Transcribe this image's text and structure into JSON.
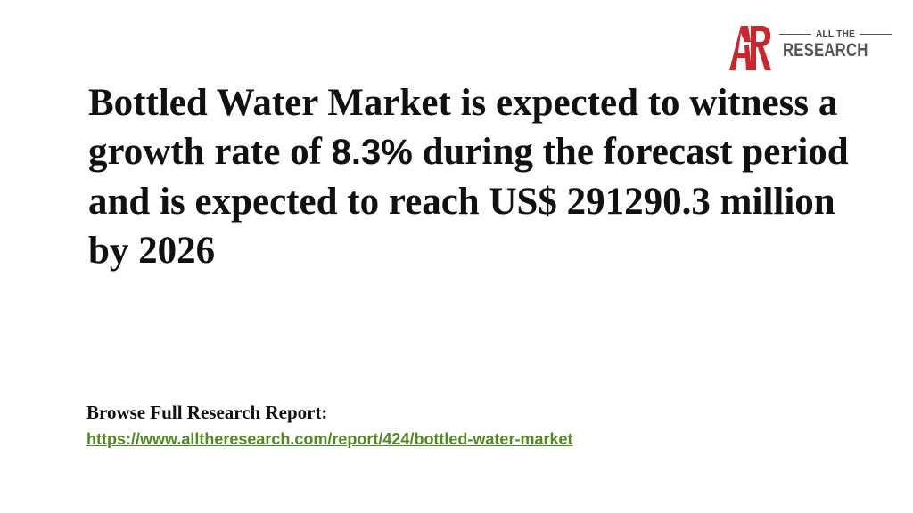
{
  "logo": {
    "mark_text": "AR",
    "small_text": "ALL THE",
    "big_text": "RESEARCH",
    "mark_color": "#c8272d"
  },
  "headline": {
    "part1": "Bottled Water Market is expected to witness a growth rate of ",
    "rate": "8.3%",
    "part2": " during the forecast period and is expected to reach US$ 291290.3 million by 2026"
  },
  "report": {
    "label": "Browse Full Research Report:",
    "link": "https://www.alltheresearch.com/report/424/bottled-water-market",
    "link_color": "#4f8a1f"
  }
}
